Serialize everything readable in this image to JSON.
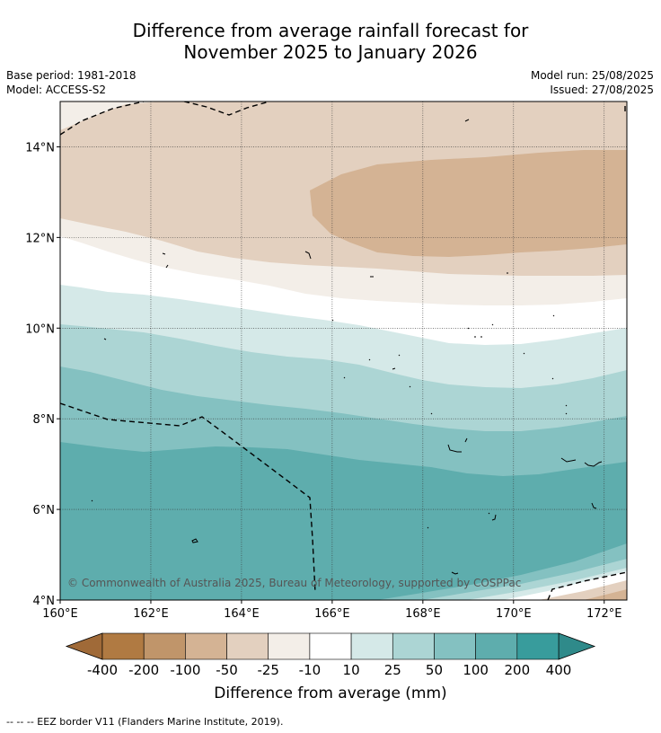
{
  "title_line1": "Difference from average rainfall forecast for",
  "title_line2": "November 2025 to January 2026",
  "base_period": "Base period: 1981-2018",
  "model": "Model: ACCESS-S2",
  "model_run": "Model run: 25/08/2025",
  "issued": "Issued: 27/08/2025",
  "copyright": "© Commonwealth of Australia 2025, Bureau of Meteorology, supported by COSPPac",
  "y_ticks": [
    {
      "lat": 14,
      "label": "14°N"
    },
    {
      "lat": 12,
      "label": "12°N"
    },
    {
      "lat": 10,
      "label": "10°N"
    },
    {
      "lat": 8,
      "label": "8°N"
    },
    {
      "lat": 6,
      "label": "6°N"
    },
    {
      "lat": 4,
      "label": "4°N"
    }
  ],
  "x_ticks": [
    {
      "lon": 160,
      "label": "160°E"
    },
    {
      "lon": 162,
      "label": "162°E"
    },
    {
      "lon": 164,
      "label": "164°E"
    },
    {
      "lon": 166,
      "label": "166°E"
    },
    {
      "lon": 168,
      "label": "168°E"
    },
    {
      "lon": 170,
      "label": "170°E"
    },
    {
      "lon": 172,
      "label": "172°E"
    }
  ],
  "colorbar": {
    "label": "Difference from average (mm)",
    "tick_labels": [
      "-400",
      "-200",
      "-100",
      "-50",
      "-25",
      "-10",
      "10",
      "25",
      "50",
      "100",
      "200",
      "400"
    ],
    "colors": [
      "#b07a42",
      "#c0956a",
      "#d4b394",
      "#e3d0bf",
      "#f3eee8",
      "#ffffff",
      "#d5e9e8",
      "#acd5d4",
      "#84c1c1",
      "#5eadad",
      "#389c9c"
    ],
    "low_extend_color": "#a06a38",
    "high_extend_color": "#2f8a8a"
  },
  "footer": "--  --  -- EEZ border V11 (Flanders Marine Institute, 2019)."
}
